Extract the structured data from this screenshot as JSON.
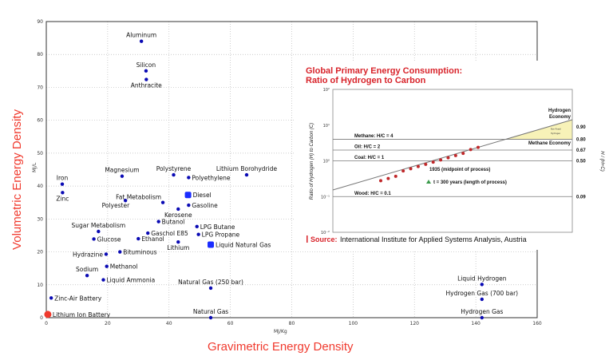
{
  "chart_data": {
    "type": "scatter",
    "xlabel": "Gravimetric Energy Density",
    "ylabel": "Volumetric Energy Density",
    "x_unit": "MJ/Kg",
    "y_unit": "MJ/L",
    "xlim": [
      0,
      160
    ],
    "ylim": [
      0,
      90
    ],
    "x_ticks": [
      "0",
      "20",
      "40",
      "60",
      "80",
      "100",
      "120",
      "140",
      "160"
    ],
    "y_ticks": [
      "0",
      "10",
      "20",
      "30",
      "40",
      "50",
      "60",
      "70",
      "80",
      "90"
    ],
    "grid": true,
    "points": [
      {
        "label": "Aluminum",
        "x": 31,
        "y": 84,
        "color": "#0a0ab4"
      },
      {
        "label": "Silicon",
        "x": 32.5,
        "y": 75,
        "color": "#0a0ab4"
      },
      {
        "label": "Anthracite",
        "x": 32.6,
        "y": 72.4,
        "color": "#0a0ab4"
      },
      {
        "label": "Magnesium",
        "x": 24.7,
        "y": 43,
        "color": "#0a0ab4"
      },
      {
        "label": "Polystyrene",
        "x": 41.5,
        "y": 43.4,
        "color": "#0a0ab4"
      },
      {
        "label": "Polyethylene",
        "x": 46.4,
        "y": 42.6,
        "color": "#0a0ab4"
      },
      {
        "label": "Lithium Borohydride",
        "x": 65.3,
        "y": 43.4,
        "color": "#0a0ab4"
      },
      {
        "label": "Iron",
        "x": 5.2,
        "y": 40.6,
        "color": "#0a0ab4"
      },
      {
        "label": "Zinc",
        "x": 5.3,
        "y": 38,
        "color": "#0a0ab4"
      },
      {
        "label": "Polyester",
        "x": 25.8,
        "y": 35.6,
        "color": "#0a0ab4"
      },
      {
        "label": "Fat Metabolism",
        "x": 38,
        "y": 35,
        "color": "#0a0ab4"
      },
      {
        "label": "Diesel",
        "x": 46.2,
        "y": 37.3,
        "color": "#1a2cff",
        "highlight": true
      },
      {
        "label": "Gasoline",
        "x": 46.4,
        "y": 34.2,
        "color": "#0a0ab4"
      },
      {
        "label": "Kerosene",
        "x": 43,
        "y": 33,
        "color": "#0a0ab4"
      },
      {
        "label": "Butanol",
        "x": 36.6,
        "y": 29.2,
        "color": "#0a0ab4"
      },
      {
        "label": "Sugar Metabolism",
        "x": 17,
        "y": 26.2,
        "color": "#0a0ab4"
      },
      {
        "label": "Gaschol E85",
        "x": 33.1,
        "y": 25.7,
        "color": "#0a0ab4"
      },
      {
        "label": "LPG Butane",
        "x": 49.1,
        "y": 27.7,
        "color": "#0a0ab4"
      },
      {
        "label": "LPG Propane",
        "x": 49.6,
        "y": 25.3,
        "color": "#0a0ab4"
      },
      {
        "label": "Glucose",
        "x": 15.5,
        "y": 23.9,
        "color": "#0a0ab4"
      },
      {
        "label": "Ethanol",
        "x": 30,
        "y": 24,
        "color": "#0a0ab4"
      },
      {
        "label": "Lithium",
        "x": 43,
        "y": 23,
        "color": "#0a0ab4"
      },
      {
        "label": "Liquid Natural Gas",
        "x": 53.6,
        "y": 22.2,
        "color": "#1a2cff",
        "highlight": true
      },
      {
        "label": "Hydrazine",
        "x": 19.5,
        "y": 19.3,
        "color": "#0a0ab4"
      },
      {
        "label": "Bituminous",
        "x": 24,
        "y": 20,
        "color": "#0a0ab4"
      },
      {
        "label": "Methanol",
        "x": 19.7,
        "y": 15.6,
        "color": "#0a0ab4"
      },
      {
        "label": "Sodium",
        "x": 13.3,
        "y": 12.8,
        "color": "#0a0ab4"
      },
      {
        "label": "Liquid Ammonia",
        "x": 18.6,
        "y": 11.5,
        "color": "#0a0ab4"
      },
      {
        "label": "Natural Gas (250 bar)",
        "x": 53.6,
        "y": 9,
        "color": "#0a0ab4"
      },
      {
        "label": "Zinc-Air Battery",
        "x": 1.6,
        "y": 6,
        "color": "#0a0ab4"
      },
      {
        "label": "Lithium Ion Battery",
        "x": 0.5,
        "y": 1,
        "color": "#f03a2e",
        "highlight": true
      },
      {
        "label": "Natural Gas",
        "x": 53.6,
        "y": 0,
        "color": "#0a0ab4"
      },
      {
        "label": "Liquid Hydrogen",
        "x": 142,
        "y": 10.1,
        "color": "#0a0ab4"
      },
      {
        "label": "Hydrogen Gas (700 bar)",
        "x": 142,
        "y": 5.6,
        "color": "#0a0ab4"
      },
      {
        "label": "Hydrogen Gas",
        "x": 142,
        "y": 0,
        "color": "#0a0ab4"
      }
    ]
  },
  "inset": {
    "title_line1": "Global Primary Energy Consumption:",
    "title_line2": "Ratio of Hydrogen to Carbon",
    "ylabel": "Ratio of Hydrogen (H) to Carbon (C)",
    "ylabel_right": "H / (H+C)",
    "y_scale": "log",
    "ylim": [
      0.01,
      100
    ],
    "y_ticks": [
      "10²",
      "10¹",
      "10⁰",
      "10⁻¹",
      "10⁻²"
    ],
    "levels": [
      {
        "label": "Methane: H/C = 4",
        "value": 4,
        "right": "0.80"
      },
      {
        "label": "Oil: H/C = 2",
        "value": 2,
        "right": "0.67"
      },
      {
        "label": "Coal: H/C = 1",
        "value": 1,
        "right": "0.50"
      },
      {
        "label": "Wood: H/C = 0.1",
        "value": 0.1,
        "right": "0.09"
      }
    ],
    "right_top": "0.90",
    "hydrogen_economy": [
      "Hydrogen",
      "Economy"
    ],
    "methane_economy": "Methane Economy",
    "non_fossil": [
      "Non-Fossil",
      "Hydrogen"
    ],
    "midpoint_note": "1935 (midpoint of process)",
    "length_note": "t = 300 years (length of process)",
    "source_label": "Source:",
    "source_text": "International Institute for Applied Systems Analysis, Austria",
    "line_color": "#888888",
    "dot_color": "#c0282a",
    "fill_color": "#f7f2b8"
  }
}
